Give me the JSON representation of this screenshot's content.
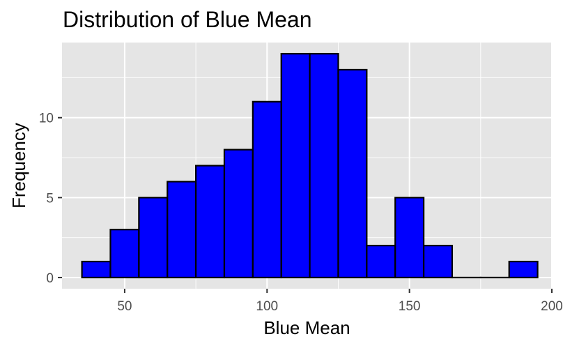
{
  "chart_data": {
    "type": "bar",
    "title": "Distribution of Blue Mean",
    "xlabel": "Blue Mean",
    "ylabel": "Frequency",
    "bin_width": 10,
    "bins": [
      {
        "x0": 35,
        "x1": 45,
        "count": 1
      },
      {
        "x0": 45,
        "x1": 55,
        "count": 3
      },
      {
        "x0": 55,
        "x1": 65,
        "count": 5
      },
      {
        "x0": 65,
        "x1": 75,
        "count": 6
      },
      {
        "x0": 75,
        "x1": 85,
        "count": 7
      },
      {
        "x0": 85,
        "x1": 95,
        "count": 8
      },
      {
        "x0": 95,
        "x1": 105,
        "count": 11
      },
      {
        "x0": 105,
        "x1": 115,
        "count": 14
      },
      {
        "x0": 115,
        "x1": 125,
        "count": 14
      },
      {
        "x0": 125,
        "x1": 135,
        "count": 13
      },
      {
        "x0": 135,
        "x1": 145,
        "count": 2
      },
      {
        "x0": 145,
        "x1": 155,
        "count": 5
      },
      {
        "x0": 155,
        "x1": 165,
        "count": 2
      },
      {
        "x0": 165,
        "x1": 175,
        "count": 0
      },
      {
        "x0": 175,
        "x1": 185,
        "count": 0
      },
      {
        "x0": 185,
        "x1": 195,
        "count": 1
      }
    ],
    "xlim": [
      28,
      200
    ],
    "ylim": [
      -0.7,
      14.7
    ],
    "x_ticks": [
      50,
      100,
      150,
      200
    ],
    "x_minor_ticks": [
      75,
      125,
      175
    ],
    "y_ticks": [
      0,
      5,
      10
    ],
    "y_minor_ticks": [
      2.5,
      7.5,
      12.5
    ],
    "grid": true,
    "legend": "none",
    "colors": {
      "bar_fill": "#0000ff",
      "bar_outline": "#000000",
      "panel_background": "#e5e5e5",
      "grid_line": "#ffffff",
      "tick_label": "#4d4d4d"
    }
  }
}
